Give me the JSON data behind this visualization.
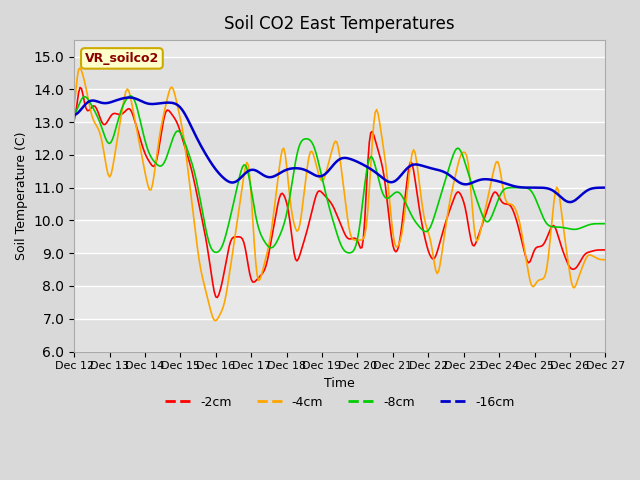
{
  "title": "Soil CO2 East Temperatures",
  "ylabel": "Soil Temperature (C)",
  "xlabel": "Time",
  "ylim": [
    6.0,
    15.5
  ],
  "bg_color": "#e8e8e8",
  "plot_bg": "#e8e8e8",
  "colors": {
    "-2cm": "#ff0000",
    "-4cm": "#ffa500",
    "-8cm": "#00cc00",
    "-16cm": "#0000cc"
  },
  "annotation_text": "VR_soilco2",
  "annotation_bg": "#ffffcc",
  "annotation_border": "#ccaa00",
  "x_tick_labels": [
    "Dec 12",
    "Dec 13",
    "Dec 14",
    "Dec 15",
    "Dec 16",
    "Dec 17",
    "Dec 18",
    "Dec 19",
    "Dec 20",
    "Dec 21",
    "Dec 22",
    "Dec 23",
    "Dec 24",
    "Dec 25",
    "Dec 26",
    "Dec 27"
  ],
  "x_ticks": [
    0,
    24,
    48,
    72,
    96,
    120,
    144,
    168,
    192,
    216,
    240,
    264,
    288,
    312,
    336,
    360
  ]
}
